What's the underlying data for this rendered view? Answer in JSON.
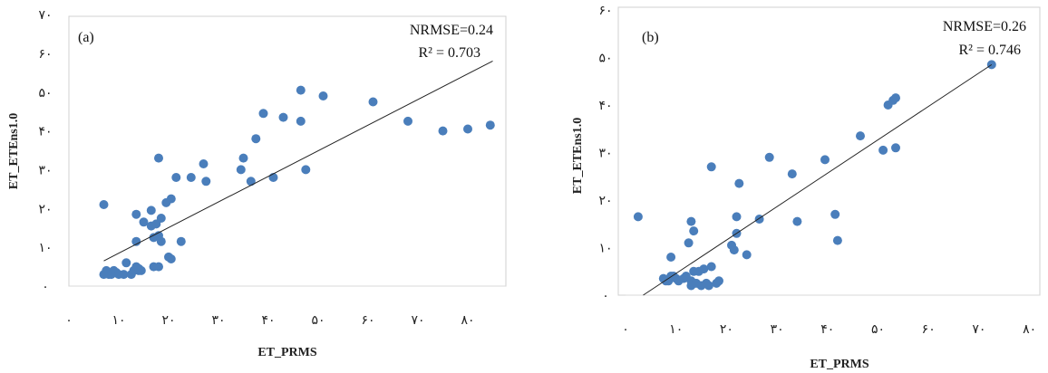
{
  "chart_data": [
    {
      "type": "scatter",
      "panel_label": "(a)",
      "xlabel": "ET_PRMS",
      "ylabel": "ET_ETEns1.0",
      "xlim": [
        0,
        85
      ],
      "ylim": [
        0,
        70
      ],
      "x_ticks": [
        "۰",
        "۱۰",
        "۲۰",
        "۳۰",
        "۴۰",
        "۵۰",
        "۶۰",
        "۷۰",
        "۸۰"
      ],
      "y_ticks": [
        "۰",
        "۱۰",
        "۲۰",
        "۳۰",
        "۴۰",
        "۵۰",
        "۶۰",
        "۷۰"
      ],
      "nrmse": "NRMSE=0.24",
      "r2": "R² = 0.703",
      "trendline": [
        [
          7,
          6.5
        ],
        [
          85,
          58
        ]
      ],
      "color": "#4a7ebb",
      "points": [
        [
          7,
          21
        ],
        [
          7,
          3
        ],
        [
          7.5,
          4
        ],
        [
          8,
          3
        ],
        [
          8.5,
          3
        ],
        [
          9,
          4
        ],
        [
          9.5,
          3.5
        ],
        [
          10,
          3
        ],
        [
          11,
          3
        ],
        [
          11.5,
          6
        ],
        [
          12.5,
          3
        ],
        [
          13,
          4
        ],
        [
          13.5,
          5
        ],
        [
          14,
          4
        ],
        [
          14,
          4.5
        ],
        [
          14.5,
          4
        ],
        [
          13.5,
          11.5
        ],
        [
          13.5,
          18.5
        ],
        [
          15,
          16.5
        ],
        [
          16.5,
          15.5
        ],
        [
          16.5,
          19.5
        ],
        [
          17,
          12.5
        ],
        [
          17,
          5
        ],
        [
          17.5,
          16
        ],
        [
          18,
          13
        ],
        [
          18,
          5
        ],
        [
          18.5,
          17.5
        ],
        [
          18.5,
          11.5
        ],
        [
          18,
          33
        ],
        [
          19.5,
          21.5
        ],
        [
          20,
          7.5
        ],
        [
          20.5,
          7
        ],
        [
          20.5,
          22.5
        ],
        [
          21.5,
          28
        ],
        [
          22.5,
          11.5
        ],
        [
          24.5,
          28
        ],
        [
          27,
          31.5
        ],
        [
          27.5,
          27
        ],
        [
          34.5,
          30
        ],
        [
          35,
          33
        ],
        [
          36.5,
          27
        ],
        [
          37.5,
          38
        ],
        [
          39,
          44.5
        ],
        [
          41,
          28
        ],
        [
          43,
          43.5
        ],
        [
          46.5,
          42.5
        ],
        [
          46.5,
          50.5
        ],
        [
          47.5,
          30
        ],
        [
          51,
          49
        ],
        [
          61,
          47.5
        ],
        [
          68,
          42.5
        ],
        [
          75,
          40
        ],
        [
          80,
          40.5
        ],
        [
          84.5,
          41.5
        ]
      ]
    },
    {
      "type": "scatter",
      "panel_label": "(b)",
      "xlabel": "ET_PRMS",
      "ylabel": "ET_ETEns1.0",
      "xlim": [
        0,
        80
      ],
      "ylim": [
        0,
        60
      ],
      "x_ticks": [
        "۰",
        "۱۰",
        "۲۰",
        "۳۰",
        "۴۰",
        "۵۰",
        "۶۰",
        "۷۰",
        "۸۰"
      ],
      "y_ticks": [
        "۰",
        "۱۰",
        "۲۰",
        "۳۰",
        "۴۰",
        "۵۰",
        "۶۰"
      ],
      "nrmse": "NRMSE=0.26",
      "r2": "R² = 0.746",
      "trendline": [
        [
          3.5,
          0
        ],
        [
          72.5,
          48.5
        ]
      ],
      "color": "#4a7ebb",
      "points": [
        [
          2.5,
          16.5
        ],
        [
          7.5,
          3.5
        ],
        [
          8,
          3
        ],
        [
          8.5,
          3
        ],
        [
          9,
          4
        ],
        [
          9,
          8
        ],
        [
          9.5,
          4
        ],
        [
          10,
          3.5
        ],
        [
          10.5,
          3
        ],
        [
          11.5,
          3.5
        ],
        [
          12,
          4
        ],
        [
          12.5,
          11
        ],
        [
          13,
          3
        ],
        [
          13.5,
          5
        ],
        [
          13,
          2
        ],
        [
          13,
          15.5
        ],
        [
          13.5,
          13.5
        ],
        [
          14,
          2.5
        ],
        [
          14.5,
          5
        ],
        [
          15,
          2
        ],
        [
          15.5,
          5.5
        ],
        [
          16,
          2.5
        ],
        [
          16.5,
          2
        ],
        [
          17,
          6
        ],
        [
          18,
          2.5
        ],
        [
          18.5,
          3
        ],
        [
          17,
          27
        ],
        [
          21,
          10.5
        ],
        [
          21.5,
          9.5
        ],
        [
          22,
          13
        ],
        [
          22,
          16.5
        ],
        [
          22.5,
          23.5
        ],
        [
          24,
          8.5
        ],
        [
          26.5,
          16
        ],
        [
          28.5,
          29
        ],
        [
          33,
          25.5
        ],
        [
          34,
          15.5
        ],
        [
          39.5,
          28.5
        ],
        [
          41.5,
          17
        ],
        [
          42,
          11.5
        ],
        [
          46.5,
          33.5
        ],
        [
          51,
          30.5
        ],
        [
          52,
          40
        ],
        [
          53,
          41
        ],
        [
          53.5,
          41.5
        ],
        [
          53.5,
          31
        ],
        [
          72.5,
          48.5
        ]
      ]
    }
  ]
}
